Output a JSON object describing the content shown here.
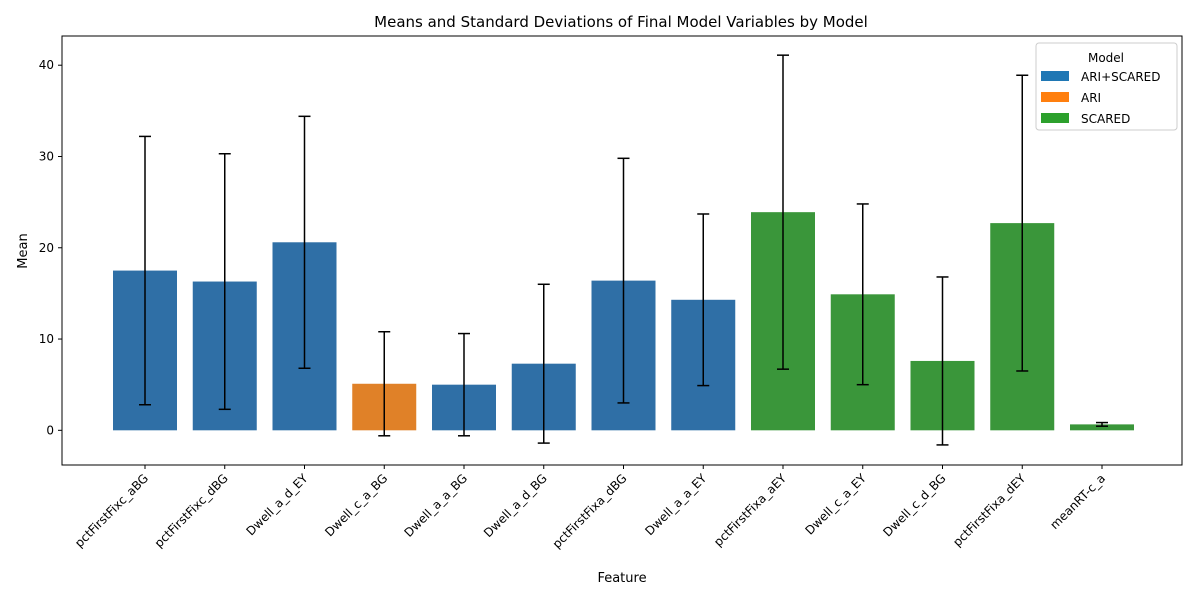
{
  "chart_data": {
    "type": "bar",
    "title": "Means and Standard Deviations of Final Model Variables by Model",
    "xlabel": "Feature",
    "ylabel": "Mean",
    "ylim": [
      -3.8,
      43.2
    ],
    "yticks": [
      0,
      10,
      20,
      30,
      40
    ],
    "grid": false,
    "legend": {
      "title": "Model",
      "position": "top-right",
      "entries": [
        {
          "name": "ARI+SCARED",
          "color": "#1f77b4"
        },
        {
          "name": "ARI",
          "color": "#ff7f0e"
        },
        {
          "name": "SCARED",
          "color": "#2ca02c"
        }
      ]
    },
    "series_colors": {
      "ARI+SCARED": "#2f6fa6",
      "ARI": "#e08128",
      "SCARED": "#3a963a"
    },
    "categories": [
      "pctFirstFixc_aBG",
      "pctFirstFixc_dBG",
      "Dwell_a_d_EY",
      "Dwell_c_a_BG",
      "Dwell_a_a_BG",
      "Dwell_a_d_BG",
      "pctFirstFixa_dBG",
      "Dwell_a_a_EY",
      "pctFirstFixa_aEY",
      "Dwell_c_a_EY",
      "Dwell_c_d_BG",
      "pctFirstFixa_dEY",
      "meanRT-c_a"
    ],
    "models": [
      "ARI+SCARED",
      "ARI+SCARED",
      "ARI+SCARED",
      "ARI",
      "ARI+SCARED",
      "ARI+SCARED",
      "ARI+SCARED",
      "ARI+SCARED",
      "SCARED",
      "SCARED",
      "SCARED",
      "SCARED",
      "SCARED"
    ],
    "values": [
      17.5,
      16.3,
      20.6,
      5.1,
      5.0,
      7.3,
      16.4,
      14.3,
      23.9,
      14.9,
      7.6,
      22.7,
      0.65
    ],
    "std": [
      14.7,
      14.0,
      13.8,
      5.7,
      5.6,
      8.7,
      13.4,
      9.4,
      17.2,
      9.9,
      9.2,
      16.2,
      0.2
    ]
  }
}
